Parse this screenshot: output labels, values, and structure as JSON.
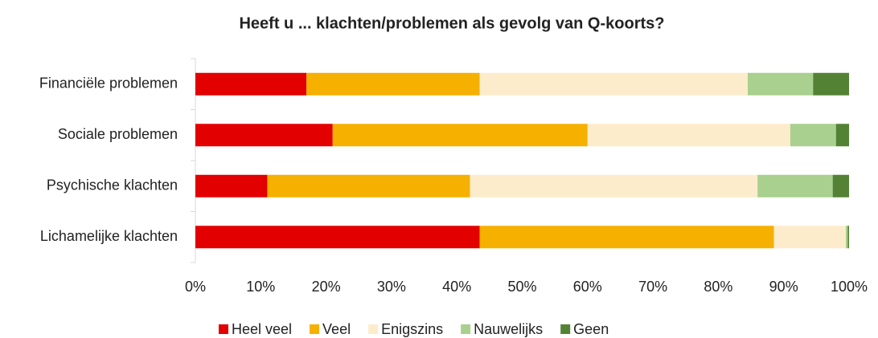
{
  "chart_data": {
    "type": "stacked_barh",
    "title": "Heeft u ... klachten/problemen als gevolg van Q-koorts?",
    "categories": [
      "Financiële problemen",
      "Sociale problemen",
      "Psychische klachten",
      "Lichamelijke klachten"
    ],
    "series": [
      {
        "name": "Heel veel",
        "color": "#e20000",
        "values": [
          17,
          21,
          11,
          43.5
        ]
      },
      {
        "name": "Veel",
        "color": "#f5b000",
        "values": [
          26.5,
          39,
          31,
          45
        ]
      },
      {
        "name": "Enigszins",
        "color": "#fdeccb",
        "values": [
          41,
          31,
          44,
          11
        ]
      },
      {
        "name": "Nauwelijks",
        "color": "#a9d08e",
        "values": [
          10,
          7,
          11.5,
          0.3
        ]
      },
      {
        "name": "Geen",
        "color": "#548235",
        "values": [
          5.5,
          2,
          2.5,
          0.2
        ]
      }
    ],
    "xlim": [
      0,
      100
    ],
    "xticks": [
      {
        "value": 0,
        "label": "0%"
      },
      {
        "value": 10,
        "label": "10%"
      },
      {
        "value": 20,
        "label": "20%"
      },
      {
        "value": 30,
        "label": "30%"
      },
      {
        "value": 40,
        "label": "40%"
      },
      {
        "value": 50,
        "label": "50%"
      },
      {
        "value": 60,
        "label": "60%"
      },
      {
        "value": 70,
        "label": "70%"
      },
      {
        "value": 80,
        "label": "80%"
      },
      {
        "value": 90,
        "label": "90%"
      },
      {
        "value": 100,
        "label": "100%"
      }
    ],
    "legend": "bottom"
  }
}
